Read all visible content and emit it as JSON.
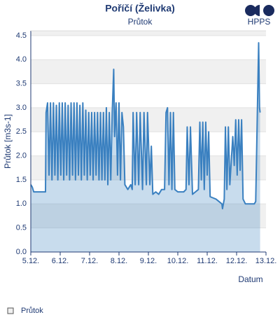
{
  "chart_data": {
    "type": "area",
    "title": "Poříčí (Želivka)",
    "subtitle": "Průtok",
    "logo": "HPPS",
    "y_label": "Průtok [m3s-1]",
    "x_label": "Datum",
    "xlim": [
      5,
      13
    ],
    "xticks": [
      {
        "value": 5,
        "label": "5.12."
      },
      {
        "value": 6,
        "label": "6.12."
      },
      {
        "value": 7,
        "label": "7.12."
      },
      {
        "value": 8,
        "label": "8.12."
      },
      {
        "value": 9,
        "label": "9.12."
      },
      {
        "value": 10,
        "label": "10.12."
      },
      {
        "value": 11,
        "label": "11.12."
      },
      {
        "value": 12,
        "label": "12.12."
      },
      {
        "value": 13,
        "label": "13.12."
      }
    ],
    "ylim": [
      0,
      4.6
    ],
    "yticks": [
      {
        "value": 0,
        "label": "0.0"
      },
      {
        "value": 0.5,
        "label": "0.5"
      },
      {
        "value": 1,
        "label": "1.0"
      },
      {
        "value": 1.5,
        "label": "1.5"
      },
      {
        "value": 2,
        "label": "2.0"
      },
      {
        "value": 2.5,
        "label": "2.5"
      },
      {
        "value": 3,
        "label": "3.0"
      },
      {
        "value": 3.5,
        "label": "3.5"
      },
      {
        "value": 4,
        "label": "4.0"
      },
      {
        "value": 4.5,
        "label": "4.5"
      }
    ],
    "grid": true,
    "legend": "bottom-left",
    "series": [
      {
        "name": "Průtok",
        "color": "#3a80c0",
        "x": [
          5.0,
          5.05,
          5.1,
          5.3,
          5.5,
          5.52,
          5.57,
          5.62,
          5.67,
          5.72,
          5.77,
          5.82,
          5.87,
          5.92,
          5.97,
          6.02,
          6.07,
          6.12,
          6.17,
          6.22,
          6.27,
          6.32,
          6.37,
          6.42,
          6.47,
          6.52,
          6.57,
          6.62,
          6.67,
          6.72,
          6.77,
          6.82,
          6.87,
          6.92,
          6.97,
          7.02,
          7.07,
          7.12,
          7.17,
          7.22,
          7.27,
          7.32,
          7.37,
          7.42,
          7.47,
          7.52,
          7.57,
          7.62,
          7.67,
          7.72,
          7.77,
          7.82,
          7.85,
          7.9,
          7.95,
          8.0,
          8.05,
          8.1,
          8.15,
          8.2,
          8.3,
          8.4,
          8.45,
          8.48,
          8.55,
          8.6,
          8.67,
          8.72,
          8.8,
          8.85,
          8.93,
          8.97,
          9.05,
          9.1,
          9.15,
          9.25,
          9.35,
          9.45,
          9.55,
          9.6,
          9.65,
          9.7,
          9.75,
          9.8,
          9.85,
          9.9,
          10.0,
          10.2,
          10.28,
          10.32,
          10.38,
          10.43,
          10.5,
          10.6,
          10.7,
          10.75,
          10.8,
          10.85,
          10.9,
          10.95,
          11.0,
          11.05,
          11.1,
          11.3,
          11.5,
          11.52,
          11.58,
          11.62,
          11.67,
          11.72,
          11.77,
          11.87,
          11.92,
          11.97,
          12.02,
          12.07,
          12.12,
          12.17,
          12.22,
          12.3,
          12.6,
          12.65,
          12.7,
          12.75,
          12.78,
          12.8
        ],
        "values": [
          1.4,
          1.35,
          1.25,
          1.25,
          1.25,
          2.9,
          3.1,
          1.6,
          3.1,
          1.5,
          3.1,
          1.6,
          3.05,
          1.5,
          3.1,
          1.6,
          3.1,
          1.5,
          3.1,
          1.6,
          3.05,
          1.5,
          3.1,
          1.6,
          3.1,
          1.5,
          3.1,
          1.6,
          3.05,
          1.5,
          3.1,
          1.6,
          2.95,
          1.5,
          2.9,
          1.6,
          2.9,
          1.5,
          2.9,
          1.6,
          2.9,
          1.5,
          2.9,
          1.5,
          2.9,
          1.5,
          3.0,
          1.4,
          2.9,
          1.5,
          2.9,
          3.8,
          2.4,
          3.1,
          1.6,
          3.1,
          1.5,
          2.9,
          2.6,
          1.4,
          1.3,
          1.4,
          1.3,
          2.9,
          1.4,
          2.9,
          1.4,
          2.9,
          1.3,
          2.9,
          1.4,
          2.9,
          1.4,
          2.2,
          1.2,
          1.25,
          1.2,
          1.3,
          1.3,
          2.9,
          3.0,
          1.4,
          2.9,
          1.3,
          2.9,
          1.3,
          1.25,
          1.25,
          1.3,
          2.6,
          1.4,
          2.6,
          1.2,
          1.25,
          1.3,
          2.7,
          1.5,
          2.7,
          1.3,
          2.7,
          1.6,
          2.5,
          1.15,
          1.1,
          1.0,
          0.9,
          1.1,
          2.6,
          1.3,
          2.6,
          1.4,
          2.4,
          1.8,
          2.75,
          1.6,
          2.75,
          1.7,
          2.75,
          1.1,
          1.0,
          1.0,
          1.05,
          2.7,
          4.35,
          3.0,
          2.9
        ]
      }
    ]
  }
}
